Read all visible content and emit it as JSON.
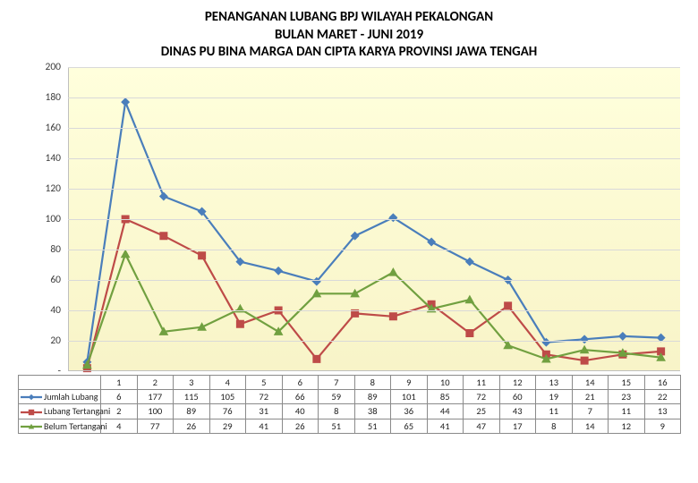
{
  "title": {
    "line1": "PENANGANAN LUBANG BPJ WILAYAH PEKALONGAN",
    "line2": "BULAN MARET - JUNI 2019",
    "line3": "DINAS PU BINA MARGA DAN CIPTA KARYA PROVINSI JAWA TENGAH",
    "fontsize": 15,
    "weight": 700,
    "color": "#000000"
  },
  "chart": {
    "type": "line",
    "background_gradient": [
      "#ffffdc",
      "#f8f4c8"
    ],
    "grid_color": "#d9d9d9",
    "ymin": 0,
    "ymax": 200,
    "ytick_step": 20,
    "ylabel_bottom": "-",
    "yticks": [
      0,
      20,
      40,
      60,
      80,
      100,
      120,
      140,
      160,
      180,
      200
    ],
    "ytick_labels": [
      "-",
      "20",
      "40",
      "60",
      "80",
      "100",
      "120",
      "140",
      "160",
      "180",
      "200"
    ],
    "ytick_fontsize": 11.5,
    "categories": [
      "1",
      "2",
      "3",
      "4",
      "5",
      "6",
      "7",
      "8",
      "9",
      "10",
      "11",
      "12",
      "13",
      "14",
      "15",
      "16"
    ],
    "series": [
      {
        "name": "Jumlah Lubang",
        "color": "#4a7ebb",
        "line_width": 2.2,
        "marker": "diamond",
        "marker_size": 5.5,
        "values": [
          6,
          177,
          115,
          105,
          72,
          66,
          59,
          89,
          101,
          85,
          72,
          60,
          19,
          21,
          23,
          22
        ]
      },
      {
        "name": "Lubang Tertangani",
        "color": "#be4b48",
        "line_width": 2.2,
        "marker": "square",
        "marker_size": 5,
        "values": [
          2,
          100,
          89,
          76,
          31,
          40,
          8,
          38,
          36,
          44,
          25,
          43,
          11,
          7,
          11,
          13
        ]
      },
      {
        "name": "Belum Tertangani",
        "color": "#71a040",
        "line_width": 2.2,
        "marker": "triangle",
        "marker_size": 6,
        "values": [
          4,
          77,
          26,
          29,
          41,
          26,
          51,
          51,
          65,
          41,
          47,
          17,
          8,
          14,
          12,
          9
        ]
      }
    ],
    "table_fontsize": 10.5,
    "table_border_color": "#8a8a8a"
  }
}
